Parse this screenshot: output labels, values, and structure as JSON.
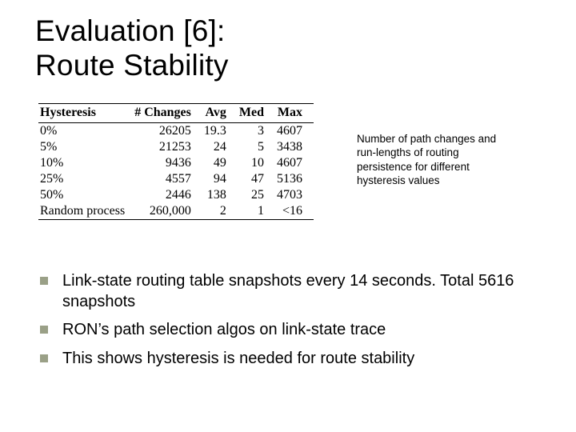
{
  "title_line1": "Evaluation [6]:",
  "title_line2": "Route Stability",
  "table": {
    "columns": [
      "Hysteresis",
      "# Changes",
      "Avg",
      "Med",
      "Max"
    ],
    "rows": [
      [
        "0%",
        "26205",
        "19.3",
        "3",
        "4607"
      ],
      [
        "5%",
        "21253",
        "24",
        "5",
        "3438"
      ],
      [
        "10%",
        "9436",
        "49",
        "10",
        "4607"
      ],
      [
        "25%",
        "4557",
        "94",
        "47",
        "5136"
      ],
      [
        "50%",
        "2446",
        "138",
        "25",
        "4703"
      ],
      [
        "Random process",
        "260,000",
        "2",
        "1",
        "<16"
      ]
    ],
    "header_font": "Times New Roman",
    "header_fontsize": 16,
    "cell_fontsize": 16,
    "rule_color": "#000000"
  },
  "caption": "Number of path changes and run-lengths of routing persistence for different hysteresis values",
  "bullets": [
    "Link-state routing table snapshots every 14 seconds. Total 5616 snapshots",
    "RON’s path selection algos on link-state trace",
    "This shows hysteresis is needed for route stability"
  ],
  "bullet_marker_color": "#9aa087",
  "background_color": "#ffffff",
  "text_color": "#000000"
}
